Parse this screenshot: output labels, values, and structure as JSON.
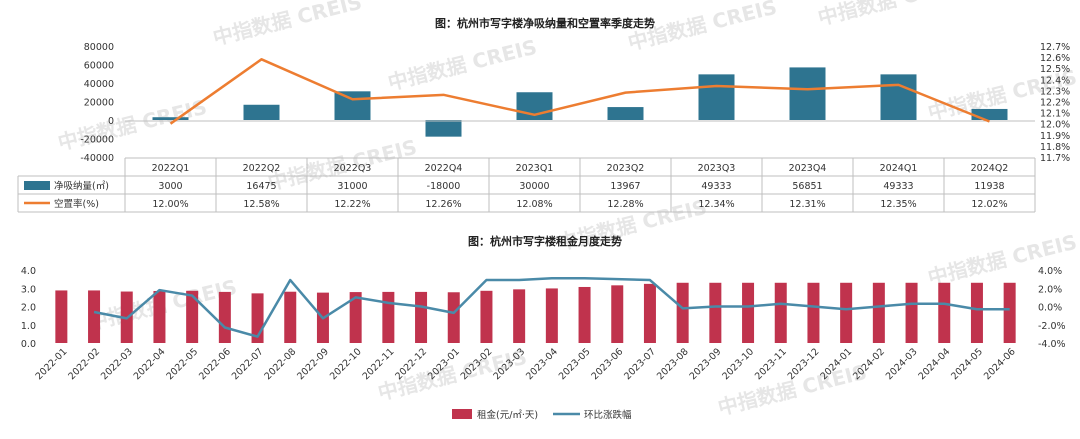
{
  "watermark": "中指数据 CREIS",
  "chart_data": [
    {
      "type": "bar",
      "title": "图：杭州市写字楼净吸纳量和空置率季度走势",
      "categories": [
        "2022Q1",
        "2022Q2",
        "2022Q3",
        "2022Q4",
        "2023Q1",
        "2023Q2",
        "2023Q3",
        "2023Q4",
        "2024Q1",
        "2024Q2"
      ],
      "series": [
        {
          "name": "净吸纳量(㎡)",
          "type": "bar",
          "axis": "left",
          "color": "#2e7490",
          "values": [
            3000,
            16475,
            31000,
            -18000,
            30000,
            13967,
            49333,
            56851,
            49333,
            11938
          ],
          "labels": [
            "3000",
            "16475",
            "31000",
            "-18000",
            "30000",
            "13967",
            "49333",
            "56851",
            "49333",
            "11938"
          ]
        },
        {
          "name": "空置率(%)",
          "type": "line",
          "axis": "right",
          "color": "#ed7d31",
          "values": [
            12.0,
            12.58,
            12.22,
            12.26,
            12.08,
            12.28,
            12.34,
            12.31,
            12.35,
            12.02
          ],
          "labels": [
            "12.00%",
            "12.58%",
            "12.22%",
            "12.26%",
            "12.08%",
            "12.28%",
            "12.34%",
            "12.31%",
            "12.35%",
            "12.02%"
          ]
        }
      ],
      "left_axis": {
        "ticks": [
          "80000",
          "60000",
          "40000",
          "20000",
          "0",
          "-20000",
          "-40000"
        ],
        "ylim": [
          -40000,
          80000
        ]
      },
      "right_axis": {
        "ticks": [
          "12.7%",
          "12.6%",
          "12.5%",
          "12.4%",
          "12.3%",
          "12.2%",
          "12.1%",
          "12.0%",
          "11.9%",
          "11.8%",
          "11.7%"
        ],
        "ylim": [
          11.7,
          12.7
        ]
      },
      "grid": false,
      "legend": "data-table"
    },
    {
      "type": "bar",
      "title": "图：杭州市写字楼租金月度走势",
      "categories": [
        "2022-01",
        "2022-02",
        "2022-03",
        "2022-04",
        "2022-05",
        "2022-06",
        "2022-07",
        "2022-08",
        "2022-09",
        "2022-10",
        "2022-11",
        "2022-12",
        "2023-01",
        "2023-02",
        "2023-03",
        "2023-04",
        "2023-05",
        "2023-06",
        "2023-07",
        "2023-08",
        "2023-09",
        "2023-10",
        "2023-11",
        "2023-12",
        "2024-01",
        "2024-02",
        "2024-03",
        "2024-04",
        "2024-05",
        "2024-06"
      ],
      "series": [
        {
          "name": "租金(元/㎡·天)",
          "type": "bar",
          "axis": "left",
          "color": "#c0334d",
          "values": [
            2.88,
            2.88,
            2.82,
            2.85,
            2.86,
            2.8,
            2.72,
            2.81,
            2.76,
            2.79,
            2.8,
            2.8,
            2.78,
            2.86,
            2.94,
            2.99,
            3.07,
            3.16,
            3.24,
            3.3,
            3.3,
            3.3,
            3.3,
            3.3,
            3.3,
            3.3,
            3.3,
            3.3,
            3.3,
            3.3
          ]
        },
        {
          "name": "环比涨跌幅",
          "type": "line",
          "axis": "right",
          "color": "#4a8aa8",
          "values": [
            null,
            -0.6,
            -1.3,
            1.8,
            1.2,
            -2.3,
            -3.3,
            2.9,
            -1.3,
            1.0,
            0.4,
            0.0,
            -0.7,
            2.9,
            2.9,
            3.1,
            3.1,
            3.0,
            2.9,
            -0.2,
            0.0,
            0.0,
            0.3,
            0.0,
            -0.3,
            0.0,
            0.3,
            0.3,
            -0.3,
            -0.3
          ]
        }
      ],
      "left_axis": {
        "ticks": [
          "4.0",
          "3.0",
          "2.0",
          "1.0",
          "0.0"
        ],
        "ylim": [
          0,
          4.0
        ]
      },
      "right_axis": {
        "ticks": [
          "4.0%",
          "2.0%",
          "0.0%",
          "-2.0%",
          "-4.0%"
        ],
        "ylim": [
          -4.0,
          4.0
        ]
      },
      "grid": false,
      "legend": "bottom"
    }
  ]
}
